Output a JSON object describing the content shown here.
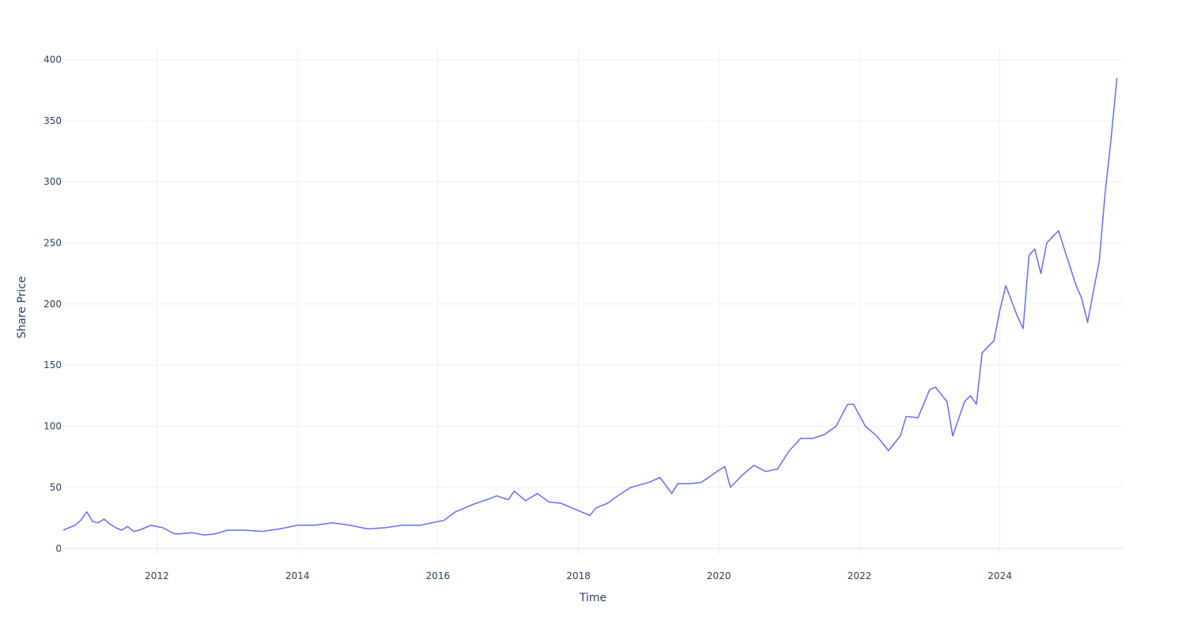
{
  "chart_data": {
    "type": "line",
    "xlabel": "Time",
    "ylabel": "Share Price",
    "x_range": [
      "2010-09-01",
      "2025-10-01"
    ],
    "ylim": [
      -5,
      410
    ],
    "x_ticks": [
      {
        "label": "2012",
        "value": "2012-01-01"
      },
      {
        "label": "2014",
        "value": "2014-01-01"
      },
      {
        "label": "2016",
        "value": "2016-01-01"
      },
      {
        "label": "2018",
        "value": "2018-01-01"
      },
      {
        "label": "2020",
        "value": "2020-01-01"
      },
      {
        "label": "2022",
        "value": "2022-01-01"
      },
      {
        "label": "2024",
        "value": "2024-01-01"
      }
    ],
    "y_ticks": [
      0,
      50,
      100,
      150,
      200,
      250,
      300,
      350,
      400
    ],
    "grid": true,
    "legend": "none",
    "line_color": "#636efa",
    "series": [
      {
        "x": [
          "2010-09-01",
          "2010-10-01",
          "2010-11-01",
          "2010-12-01",
          "2011-01-01",
          "2011-02-01",
          "2011-03-01",
          "2011-04-01",
          "2011-05-01",
          "2011-06-01",
          "2011-07-01",
          "2011-08-01",
          "2011-09-01",
          "2011-10-01",
          "2011-11-01",
          "2011-12-01",
          "2012-02-01",
          "2012-04-01",
          "2012-05-01",
          "2012-07-01",
          "2012-09-01",
          "2012-11-01",
          "2013-01-01",
          "2013-04-01",
          "2013-07-01",
          "2013-10-01",
          "2014-01-01",
          "2014-04-01",
          "2014-07-01",
          "2014-10-01",
          "2015-01-01",
          "2015-04-01",
          "2015-07-01",
          "2015-10-01",
          "2016-01-01",
          "2016-02-01",
          "2016-04-01",
          "2016-07-01",
          "2016-10-01",
          "2016-11-01",
          "2017-01-01",
          "2017-02-01",
          "2017-04-01",
          "2017-06-01",
          "2017-08-01",
          "2017-10-01",
          "2018-01-01",
          "2018-03-01",
          "2018-04-01",
          "2018-06-01",
          "2018-08-01",
          "2018-10-01",
          "2019-01-01",
          "2019-03-01",
          "2019-05-01",
          "2019-06-01",
          "2019-08-01",
          "2019-10-01",
          "2020-01-01",
          "2020-02-01",
          "2020-03-01",
          "2020-05-01",
          "2020-07-01",
          "2020-09-01",
          "2020-11-01",
          "2021-01-01",
          "2021-03-01",
          "2021-05-01",
          "2021-07-01",
          "2021-09-01",
          "2021-11-01",
          "2021-12-01",
          "2022-02-01",
          "2022-04-01",
          "2022-06-01",
          "2022-08-01",
          "2022-09-01",
          "2022-11-01",
          "2023-01-01",
          "2023-02-01",
          "2023-04-01",
          "2023-05-01",
          "2023-07-01",
          "2023-08-01",
          "2023-09-01",
          "2023-10-01",
          "2023-12-01",
          "2024-01-01",
          "2024-02-01",
          "2024-04-01",
          "2024-05-01",
          "2024-06-01",
          "2024-07-01",
          "2024-08-01",
          "2024-09-01",
          "2024-10-01",
          "2024-11-01",
          "2024-12-01",
          "2025-01-01",
          "2025-02-01",
          "2025-03-01",
          "2025-04-01",
          "2025-05-01",
          "2025-06-01",
          "2025-07-01",
          "2025-08-01",
          "2025-09-01"
        ],
        "y": [
          15,
          17,
          19,
          23,
          30,
          22,
          21,
          24,
          20,
          17,
          15,
          18,
          14,
          15,
          17,
          19,
          17,
          12,
          12,
          13,
          11,
          12,
          15,
          15,
          14,
          16,
          19,
          19,
          21,
          19,
          16,
          17,
          19,
          19,
          22,
          23,
          30,
          36,
          41,
          43,
          40,
          47,
          39,
          45,
          38,
          37,
          31,
          27,
          33,
          37,
          44,
          50,
          54,
          58,
          45,
          53,
          53,
          54,
          64,
          67,
          50,
          60,
          68,
          63,
          65,
          80,
          90,
          90,
          93,
          100,
          118,
          118,
          100,
          92,
          80,
          92,
          108,
          107,
          130,
          132,
          120,
          92,
          120,
          125,
          118,
          160,
          170,
          195,
          215,
          190,
          180,
          240,
          245,
          225,
          250,
          255,
          260,
          245,
          230,
          215,
          205,
          185,
          210,
          235,
          290,
          335,
          385
        ]
      }
    ]
  }
}
